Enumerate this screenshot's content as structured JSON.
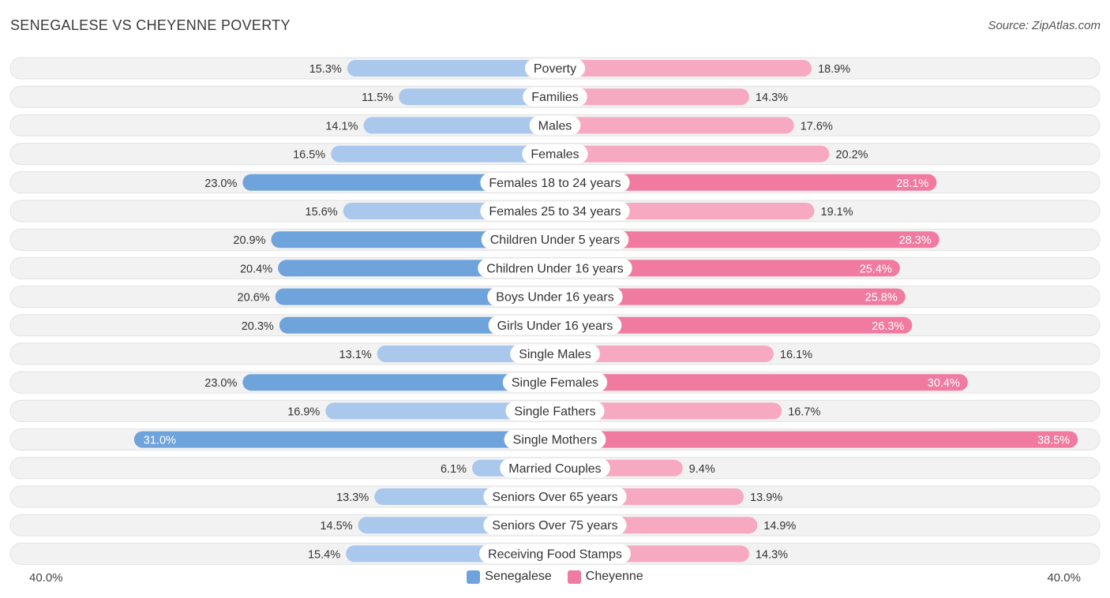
{
  "header": {
    "title": "SENEGALESE VS CHEYENNE POVERTY",
    "source": "Source: ZipAtlas.com"
  },
  "colors": {
    "senegalese": "#6fa3dc",
    "senegalese_light": "#a9c8ec",
    "cheyenne": "#f07aa0",
    "cheyenne_light": "#f7a9c2",
    "row_bg": "#f0f0f0"
  },
  "chart_data": {
    "type": "bar",
    "title": "SENEGALESE VS CHEYENNE POVERTY",
    "orientation": "horizontal-diverging",
    "axis_max": 40.0,
    "axis_left_label": "40.0%",
    "axis_right_label": "40.0%",
    "categories": [
      "Poverty",
      "Families",
      "Males",
      "Females",
      "Females 18 to 24 years",
      "Females 25 to 34 years",
      "Children Under 5 years",
      "Children Under 16 years",
      "Boys Under 16 years",
      "Girls Under 16 years",
      "Single Males",
      "Single Females",
      "Single Fathers",
      "Single Mothers",
      "Married Couples",
      "Seniors Over 65 years",
      "Seniors Over 75 years",
      "Receiving Food Stamps"
    ],
    "series": [
      {
        "name": "Senegalese",
        "values": [
          15.3,
          11.5,
          14.1,
          16.5,
          23.0,
          15.6,
          20.9,
          20.4,
          20.6,
          20.3,
          13.1,
          23.0,
          16.9,
          31.0,
          6.1,
          13.3,
          14.5,
          15.4
        ],
        "labels": [
          "15.3%",
          "11.5%",
          "14.1%",
          "16.5%",
          "23.0%",
          "15.6%",
          "20.9%",
          "20.4%",
          "20.6%",
          "20.3%",
          "13.1%",
          "23.0%",
          "16.9%",
          "31.0%",
          "6.1%",
          "13.3%",
          "14.5%",
          "15.4%"
        ]
      },
      {
        "name": "Cheyenne",
        "values": [
          18.9,
          14.3,
          17.6,
          20.2,
          28.1,
          19.1,
          28.3,
          25.4,
          25.8,
          26.3,
          16.1,
          30.4,
          16.7,
          38.5,
          9.4,
          13.9,
          14.9,
          14.3
        ],
        "labels": [
          "18.9%",
          "14.3%",
          "17.6%",
          "20.2%",
          "28.1%",
          "19.1%",
          "28.3%",
          "25.4%",
          "25.8%",
          "26.3%",
          "16.1%",
          "30.4%",
          "16.7%",
          "38.5%",
          "9.4%",
          "13.9%",
          "14.9%",
          "14.3%"
        ]
      }
    ],
    "legend": [
      "Senegalese",
      "Cheyenne"
    ]
  }
}
